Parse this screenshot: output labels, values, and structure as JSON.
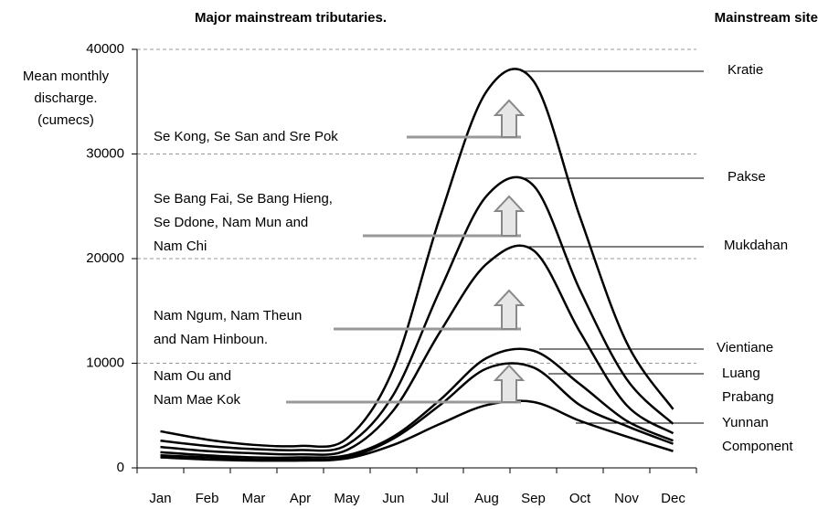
{
  "chart_data": {
    "type": "line",
    "title": "Major mainstream tributaries.",
    "subtitle": "Mainstream site",
    "y_label": [
      "Mean monthly",
      "discharge.",
      "(cumecs)"
    ],
    "categories": [
      "Jan",
      "Feb",
      "Mar",
      "Apr",
      "May",
      "Jun",
      "Jul",
      "Aug",
      "Sep",
      "Oct",
      "Nov",
      "Dec"
    ],
    "ylim": [
      0,
      40000
    ],
    "yticks": [
      0,
      10000,
      20000,
      30000,
      40000
    ],
    "grid": true,
    "series": [
      {
        "name": "Kratie",
        "color": "#000000",
        "values": [
          3500,
          2700,
          2200,
          2100,
          2800,
          9500,
          24000,
          36000,
          37000,
          24000,
          12000,
          5600
        ]
      },
      {
        "name": "Pakse",
        "color": "#000000",
        "values": [
          2600,
          2100,
          1800,
          1700,
          2200,
          7000,
          17000,
          26000,
          27000,
          17000,
          8500,
          4200
        ]
      },
      {
        "name": "Mukdahan",
        "color": "#000000",
        "values": [
          2000,
          1600,
          1400,
          1300,
          1700,
          5500,
          13000,
          19500,
          20800,
          13000,
          6000,
          3300
        ]
      },
      {
        "name": "Vientiane",
        "color": "#000000",
        "values": [
          1500,
          1200,
          1000,
          1000,
          1200,
          3000,
          6500,
          10500,
          11200,
          8000,
          4500,
          2600
        ]
      },
      {
        "name": "Luang Prabang",
        "color": "#000000",
        "values": [
          1200,
          1000,
          800,
          800,
          1000,
          2800,
          6000,
          9500,
          9600,
          6000,
          4000,
          2300
        ]
      },
      {
        "name": "Yunnan Component",
        "color": "#000000",
        "values": [
          1000,
          800,
          700,
          700,
          900,
          2200,
          4200,
          6000,
          6300,
          4500,
          3000,
          1600
        ]
      }
    ],
    "tributaries": [
      {
        "lines": [
          "Se Kong, Se San and Sre Pok"
        ]
      },
      {
        "lines": [
          "Se Bang Fai, Se Bang Hieng,",
          "Se Ddone, Nam Mun and",
          "Nam Chi"
        ]
      },
      {
        "lines": [
          "Nam Ngum, Nam Theun",
          "and Nam Hinboun."
        ]
      },
      {
        "lines": [
          "Nam Ou and",
          "Nam Mae Kok"
        ]
      }
    ]
  }
}
